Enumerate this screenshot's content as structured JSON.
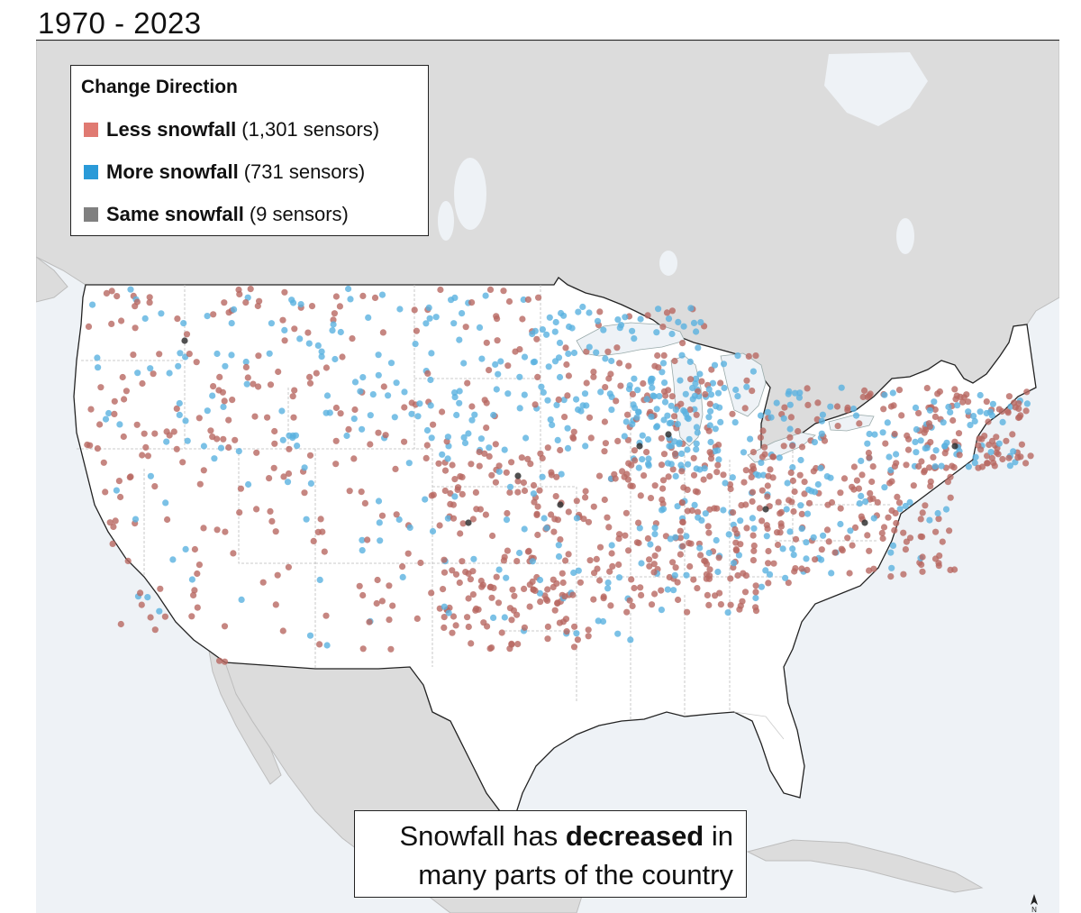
{
  "title": "1970 - 2023",
  "legend": {
    "title": "Change Direction",
    "items": [
      {
        "label": "Less snowfall",
        "count": "(1,301 sensors)",
        "color": "#e07a72"
      },
      {
        "label": "More snowfall",
        "count": "(731 sensors)",
        "color": "#2a9ad8"
      },
      {
        "label": "Same snowfall",
        "count": "(9 sensors)",
        "color": "#808080"
      }
    ]
  },
  "caption": {
    "before": "Snowfall has ",
    "bold": "decreased",
    "after_line1": " in",
    "line2": "many parts of the country"
  },
  "colors": {
    "water": "#eef2f6",
    "foreign_land": "#dcdcdc",
    "us_land": "#ffffff",
    "less_dot": "#b86861",
    "more_dot": "#5ab2e0",
    "same_dot": "#333333"
  },
  "icons": {
    "north_arrow": "north-arrow-icon"
  }
}
